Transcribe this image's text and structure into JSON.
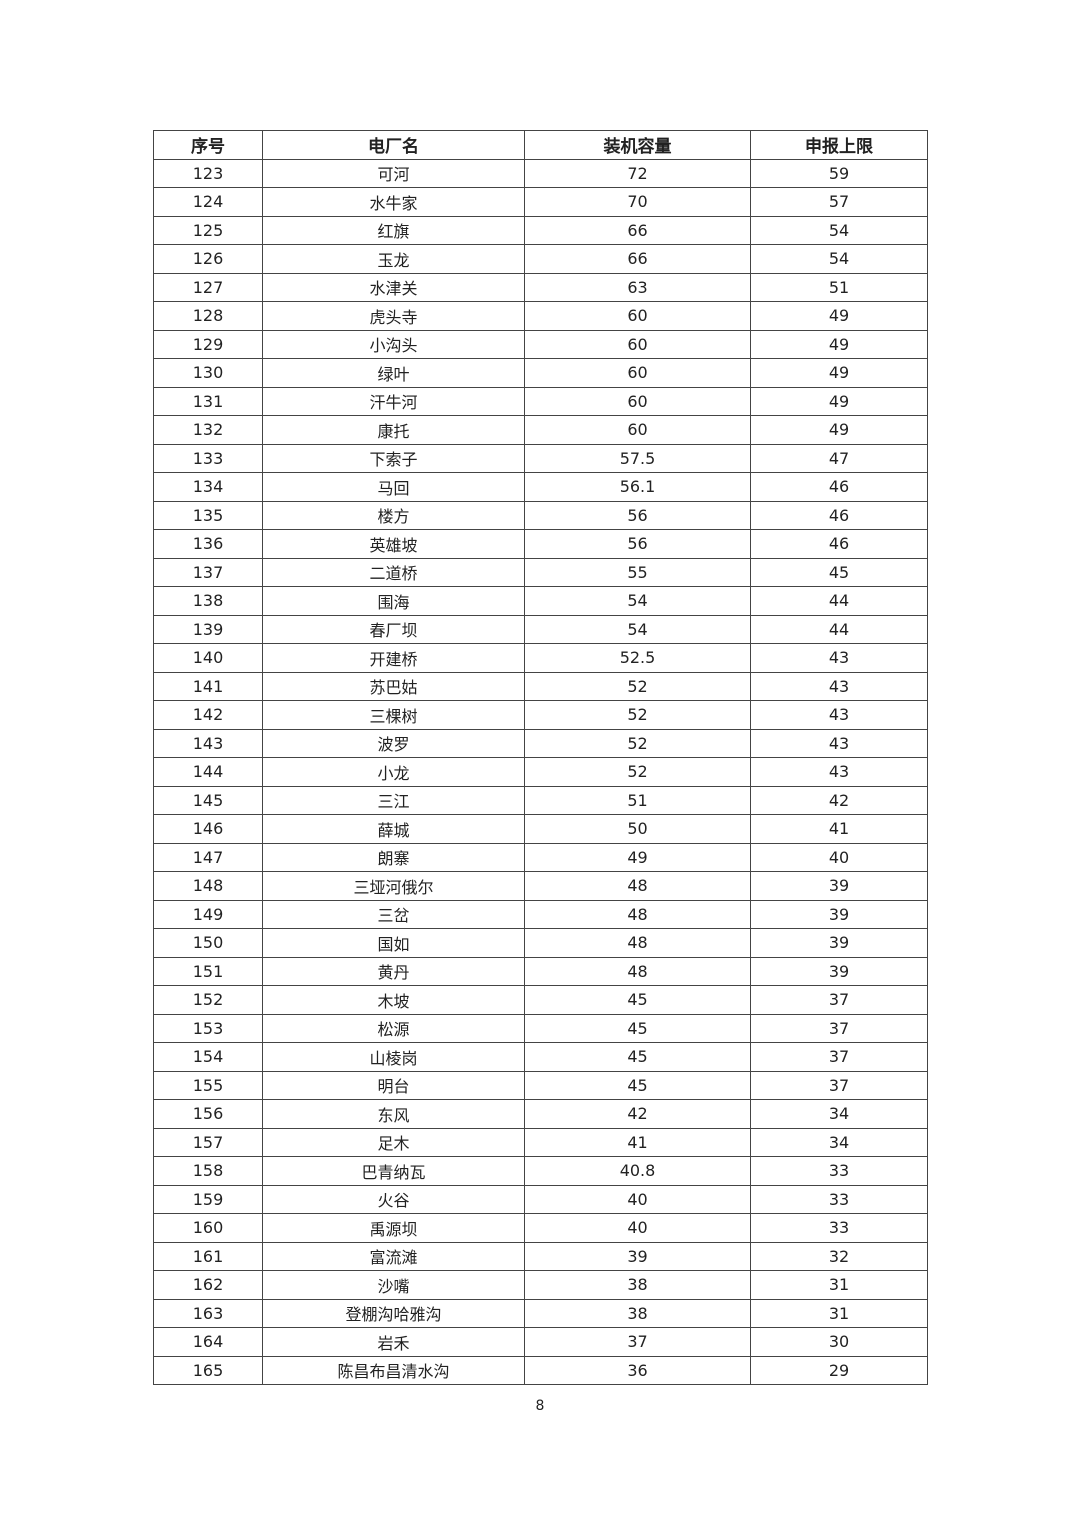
{
  "table": {
    "headers": [
      "序号",
      "电厂名",
      "装机容量",
      "申报上限"
    ],
    "rows": [
      [
        "123",
        "可河",
        "72",
        "59"
      ],
      [
        "124",
        "水牛家",
        "70",
        "57"
      ],
      [
        "125",
        "红旗",
        "66",
        "54"
      ],
      [
        "126",
        "玉龙",
        "66",
        "54"
      ],
      [
        "127",
        "水津关",
        "63",
        "51"
      ],
      [
        "128",
        "虎头寺",
        "60",
        "49"
      ],
      [
        "129",
        "小沟头",
        "60",
        "49"
      ],
      [
        "130",
        "绿叶",
        "60",
        "49"
      ],
      [
        "131",
        "汗牛河",
        "60",
        "49"
      ],
      [
        "132",
        "康托",
        "60",
        "49"
      ],
      [
        "133",
        "下索子",
        "57.5",
        "47"
      ],
      [
        "134",
        "马回",
        "56.1",
        "46"
      ],
      [
        "135",
        "楼方",
        "56",
        "46"
      ],
      [
        "136",
        "英雄坡",
        "56",
        "46"
      ],
      [
        "137",
        "二道桥",
        "55",
        "45"
      ],
      [
        "138",
        "围海",
        "54",
        "44"
      ],
      [
        "139",
        "春厂坝",
        "54",
        "44"
      ],
      [
        "140",
        "开建桥",
        "52.5",
        "43"
      ],
      [
        "141",
        "苏巴姑",
        "52",
        "43"
      ],
      [
        "142",
        "三棵树",
        "52",
        "43"
      ],
      [
        "143",
        "波罗",
        "52",
        "43"
      ],
      [
        "144",
        "小龙",
        "52",
        "43"
      ],
      [
        "145",
        "三江",
        "51",
        "42"
      ],
      [
        "146",
        "薛城",
        "50",
        "41"
      ],
      [
        "147",
        "朗寨",
        "49",
        "40"
      ],
      [
        "148",
        "三垭河俄尔",
        "48",
        "39"
      ],
      [
        "149",
        "三岔",
        "48",
        "39"
      ],
      [
        "150",
        "国如",
        "48",
        "39"
      ],
      [
        "151",
        "黄丹",
        "48",
        "39"
      ],
      [
        "152",
        "木坡",
        "45",
        "37"
      ],
      [
        "153",
        "松源",
        "45",
        "37"
      ],
      [
        "154",
        "山棱岗",
        "45",
        "37"
      ],
      [
        "155",
        "明台",
        "45",
        "37"
      ],
      [
        "156",
        "东风",
        "42",
        "34"
      ],
      [
        "157",
        "足木",
        "41",
        "34"
      ],
      [
        "158",
        "巴青纳瓦",
        "40.8",
        "33"
      ],
      [
        "159",
        "火谷",
        "40",
        "33"
      ],
      [
        "160",
        "禹源坝",
        "40",
        "33"
      ],
      [
        "161",
        "富流滩",
        "39",
        "32"
      ],
      [
        "162",
        "沙嘴",
        "38",
        "31"
      ],
      [
        "163",
        "登棚沟哈雅沟",
        "38",
        "31"
      ],
      [
        "164",
        "岩禾",
        "37",
        "30"
      ],
      [
        "165",
        "陈昌布昌清水沟",
        "36",
        "29"
      ]
    ]
  },
  "page_number": "8"
}
